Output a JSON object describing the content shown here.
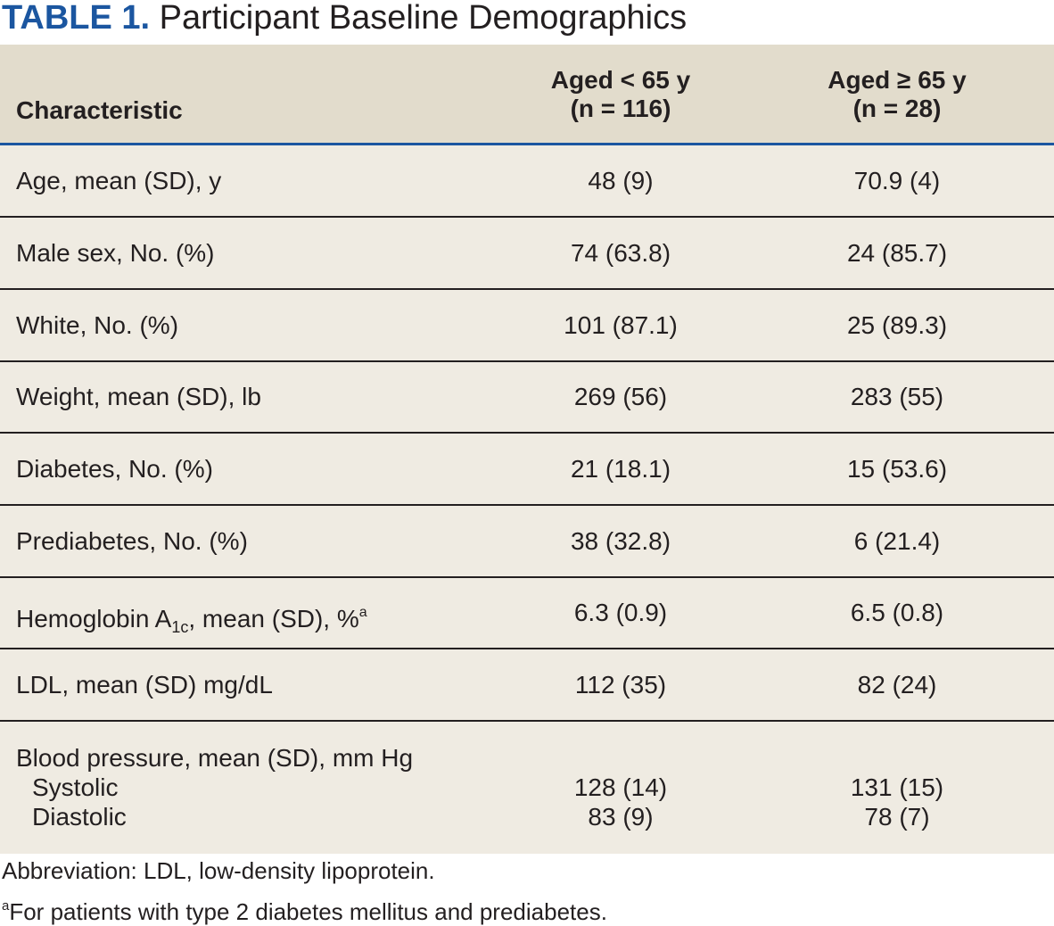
{
  "title": {
    "label": "TABLE 1.",
    "text": "Participant Baseline Demographics"
  },
  "header": {
    "characteristic": "Characteristic",
    "col1_line1": "Aged < 65 y",
    "col1_line2": "(n = 116)",
    "col2_line1": "Aged ≥ 65 y",
    "col2_line2": "(n = 28)"
  },
  "rows": [
    {
      "label": "Age, mean (SD), y",
      "v1": "48 (9)",
      "v2": "70.9 (4)"
    },
    {
      "label": "Male sex, No. (%)",
      "v1": "74 (63.8)",
      "v2": "24 (85.7)"
    },
    {
      "label": "White, No. (%)",
      "v1": "101 (87.1)",
      "v2": "25 (89.3)"
    },
    {
      "label": "Weight, mean (SD), lb",
      "v1": "269 (56)",
      "v2": "283 (55)"
    },
    {
      "label": "Diabetes, No. (%)",
      "v1": "21 (18.1)",
      "v2": "15 (53.6)"
    },
    {
      "label": "Prediabetes, No. (%)",
      "v1": "38 (32.8)",
      "v2": "6 (21.4)"
    },
    {
      "label_pre": "Hemoglobin A",
      "label_sub": "1c",
      "label_post": ", mean (SD), %",
      "label_sup": "a",
      "v1": "6.3 (0.9)",
      "v2": "6.5 (0.8)"
    },
    {
      "label": "LDL, mean (SD) mg/dL",
      "v1": "112 (35)",
      "v2": "82 (24)"
    }
  ],
  "bp": {
    "label": "Blood pressure, mean (SD), mm Hg",
    "systolic_label": "Systolic",
    "systolic_v1": "128 (14)",
    "systolic_v2": "131 (15)",
    "diastolic_label": "Diastolic",
    "diastolic_v1": "83 (9)",
    "diastolic_v2": "78 (7)"
  },
  "footnotes": {
    "abbreviation": "Abbreviation: LDL, low-density lipoprotein.",
    "note_mark": "a",
    "note_text": "For patients with type 2 diabetes mellitus and prediabetes."
  }
}
